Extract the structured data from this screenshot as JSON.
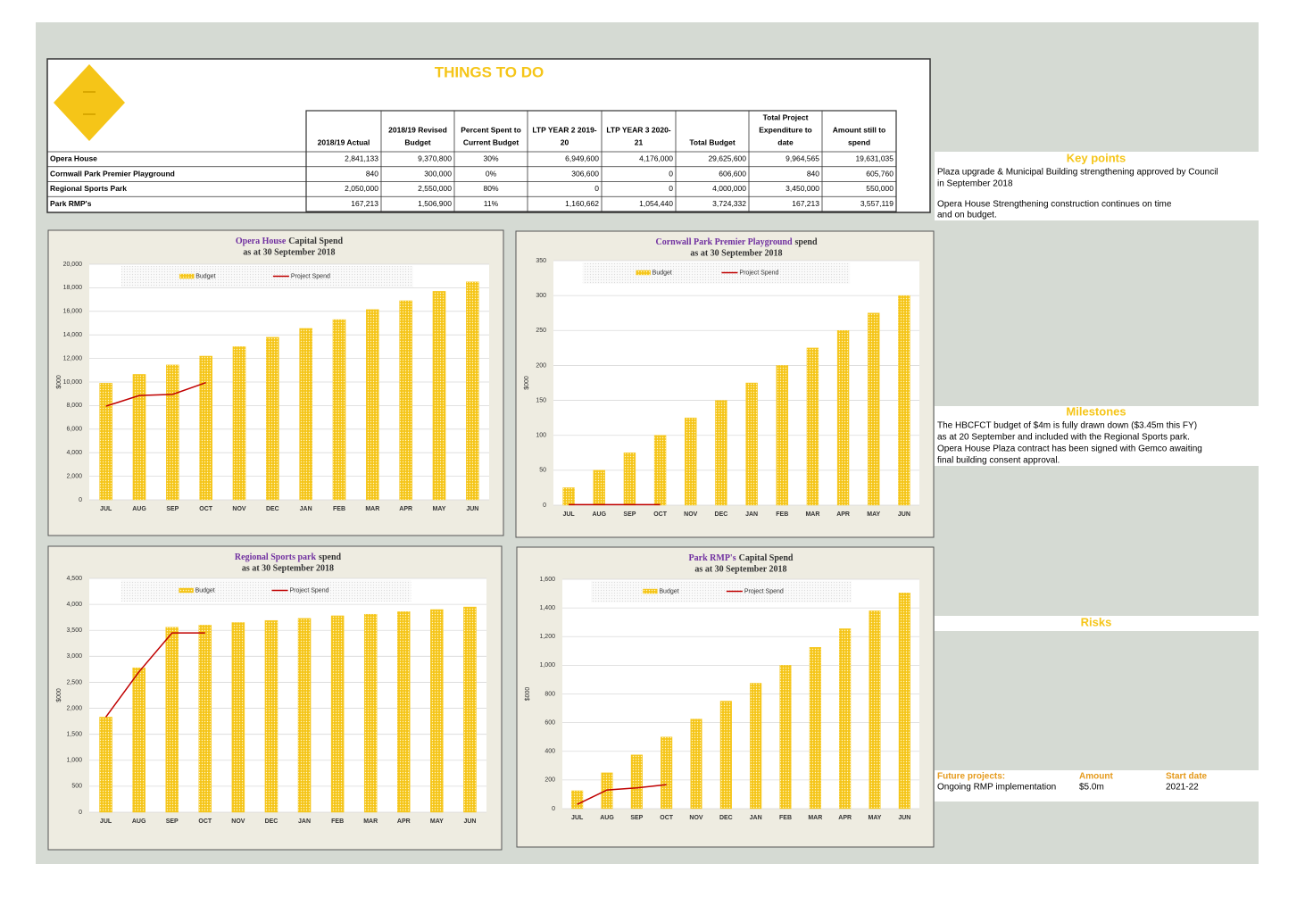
{
  "header": {
    "title": "THINGS TO DO"
  },
  "table": {
    "highlight_column": 2,
    "highlight_color": "#ff0000",
    "columns": [
      [
        "2018/19 Actual"
      ],
      [
        "2018/19 Revised",
        "Budget"
      ],
      [
        "Percent Spent to",
        "Current Budget"
      ],
      [
        "LTP YEAR 2 2019-",
        "20"
      ],
      [
        "LTP YEAR 3 2020-",
        "21"
      ],
      [
        "Total Budget"
      ],
      [
        "Total Project",
        "Expenditure to",
        "date"
      ],
      [
        "Amount still to",
        "spend"
      ]
    ],
    "rows": [
      {
        "label": "Opera House",
        "cells": [
          "2,841,133",
          "9,370,800",
          "30%",
          "6,949,600",
          "4,176,000",
          "29,625,600",
          "9,964,565",
          "19,631,035"
        ]
      },
      {
        "label": "Cornwall Park Premier Playground",
        "cells": [
          "840",
          "300,000",
          "0%",
          "306,600",
          "0",
          "606,600",
          "840",
          "605,760"
        ]
      },
      {
        "label": "Regional Sports Park",
        "cells": [
          "2,050,000",
          "2,550,000",
          "80%",
          "0",
          "0",
          "4,000,000",
          "3,450,000",
          "550,000"
        ]
      },
      {
        "label": "Park RMP's",
        "cells": [
          "167,213",
          "1,506,900",
          "11%",
          "1,160,662",
          "1,054,440",
          "3,724,332",
          "167,213",
          "3,557,119"
        ]
      }
    ]
  },
  "side": {
    "key_points": {
      "title": "Key points",
      "lines": [
        "Plaza upgrade & Municipal Building strengthening approved by Council",
        " in September 2018",
        "Opera House Strengthening construction continues on time",
        "and on budget."
      ]
    },
    "milestones": {
      "title": "Milestones",
      "lines": [
        "The HBCFCT budget of $4m is fully drawn down ($3.45m this FY)",
        "as at 20 September and included with the Regional Sports park.",
        "Opera House Plaza contract has been signed with Gemco awaiting",
        " final building consent approval."
      ]
    },
    "risks": {
      "title": "Risks"
    },
    "future": {
      "headers": [
        "Future projects:",
        "Amount",
        "Start date"
      ],
      "row": [
        "Ongoing RMP implementation",
        "$5.0m",
        "2021-22"
      ]
    }
  },
  "chart_data": [
    {
      "type": "bar_line",
      "title_highlight": "Opera House",
      "title_rest": "Capital Spend",
      "subtitle": "as at 30 September 2018",
      "y_label": "$000",
      "legend": "top",
      "highlight_color": "#7030a0",
      "categories": [
        "JUL",
        "AUG",
        "SEP",
        "OCT",
        "NOV",
        "DEC",
        "JAN",
        "FEB",
        "MAR",
        "APR",
        "MAY",
        "JUN"
      ],
      "ylim": [
        0,
        20000
      ],
      "yticks": [
        0,
        {
          "value": 2000,
          "label": "2,000"
        },
        {
          "value": 4000,
          "label": "4,000"
        },
        {
          "value": 6000,
          "label": "6,000"
        },
        {
          "value": 8000,
          "label": "8,000"
        },
        {
          "value": 10000,
          "label": "10,000"
        },
        {
          "value": 12000,
          "label": "12,000"
        },
        {
          "value": 14000,
          "label": "14,000"
        },
        {
          "value": 16000,
          "label": "16,000"
        },
        {
          "value": 18000,
          "label": "18,000"
        },
        {
          "value": 20000,
          "label": "20,000"
        }
      ],
      "series": [
        {
          "name": "Budget",
          "color": "#f5c518",
          "values": [
            9900,
            10650,
            11450,
            12200,
            13000,
            13800,
            14550,
            15300,
            16150,
            16900,
            17700,
            18500
          ]
        },
        {
          "name": "Project Spend",
          "color": "#c00000",
          "values": [
            7950,
            8850,
            8950,
            9950,
            null,
            null,
            null,
            null,
            null,
            null,
            null,
            null
          ]
        }
      ]
    },
    {
      "type": "bar_line",
      "title_highlight": "Cornwall Park Premier Playground",
      "title_rest": "spend",
      "subtitle": "as at 30 September 2018",
      "y_label": "$000",
      "legend": "top",
      "highlight_color": "#7030a0",
      "categories": [
        "JUL",
        "AUG",
        "SEP",
        "OCT",
        "NOV",
        "DEC",
        "JAN",
        "FEB",
        "MAR",
        "APR",
        "MAY",
        "JUN"
      ],
      "ylim": [
        0,
        350
      ],
      "yticks": [
        0,
        50,
        100,
        150,
        200,
        250,
        300,
        350
      ],
      "series": [
        {
          "name": "Budget",
          "color": "#f5c518",
          "values": [
            25,
            50,
            75,
            100,
            125,
            150,
            175,
            200,
            225,
            250,
            275,
            300
          ]
        },
        {
          "name": "Project Spend",
          "color": "#c00000",
          "values": [
            0.8,
            0.8,
            0.8,
            0.8,
            null,
            null,
            null,
            null,
            null,
            null,
            null,
            null
          ]
        }
      ]
    },
    {
      "type": "bar_line",
      "title_highlight": "Regional Sports park",
      "title_rest": "spend",
      "subtitle": "as at 30 September 2018",
      "y_label": "$000",
      "legend": "top",
      "highlight_color": "#7030a0",
      "categories": [
        "JUL",
        "AUG",
        "SEP",
        "OCT",
        "NOV",
        "DEC",
        "JAN",
        "FEB",
        "MAR",
        "APR",
        "MAY",
        "JUN"
      ],
      "ylim": [
        0,
        4500
      ],
      "yticks": [
        0,
        500,
        {
          "value": 1000,
          "label": "1,000"
        },
        {
          "value": 1500,
          "label": "1,500"
        },
        {
          "value": 2000,
          "label": "2,000"
        },
        {
          "value": 2500,
          "label": "2,500"
        },
        {
          "value": 3000,
          "label": "3,000"
        },
        {
          "value": 3500,
          "label": "3,500"
        },
        {
          "value": 4000,
          "label": "4,000"
        },
        {
          "value": 4500,
          "label": "4,500"
        }
      ],
      "series": [
        {
          "name": "Budget",
          "color": "#f5c518",
          "values": [
            1830,
            2780,
            3560,
            3600,
            3650,
            3690,
            3730,
            3780,
            3810,
            3860,
            3900,
            3950
          ]
        },
        {
          "name": "Project Spend",
          "color": "#c00000",
          "values": [
            1830,
            2700,
            3450,
            3450,
            null,
            null,
            null,
            null,
            null,
            null,
            null,
            null
          ]
        }
      ]
    },
    {
      "type": "bar_line",
      "title_highlight": "Park RMP's",
      "title_rest": "Capital Spend",
      "subtitle": "as at 30 September 2018",
      "y_label": "$000",
      "legend": "top",
      "highlight_color": "#7030a0",
      "categories": [
        "JUL",
        "AUG",
        "SEP",
        "OCT",
        "NOV",
        "DEC",
        "JAN",
        "FEB",
        "MAR",
        "APR",
        "MAY",
        "JUN"
      ],
      "ylim": [
        0,
        1600
      ],
      "yticks": [
        0,
        200,
        400,
        600,
        800,
        {
          "value": 1000,
          "label": "1,000"
        },
        {
          "value": 1200,
          "label": "1,200"
        },
        {
          "value": 1400,
          "label": "1,400"
        },
        {
          "value": 1600,
          "label": "1,600"
        }
      ],
      "series": [
        {
          "name": "Budget",
          "color": "#f5c518",
          "values": [
            125,
            250,
            375,
            500,
            625,
            750,
            875,
            1000,
            1125,
            1255,
            1380,
            1505
          ]
        },
        {
          "name": "Project Spend",
          "color": "#c00000",
          "values": [
            30,
            130,
            145,
            167,
            null,
            null,
            null,
            null,
            null,
            null,
            null,
            null
          ]
        }
      ]
    }
  ]
}
